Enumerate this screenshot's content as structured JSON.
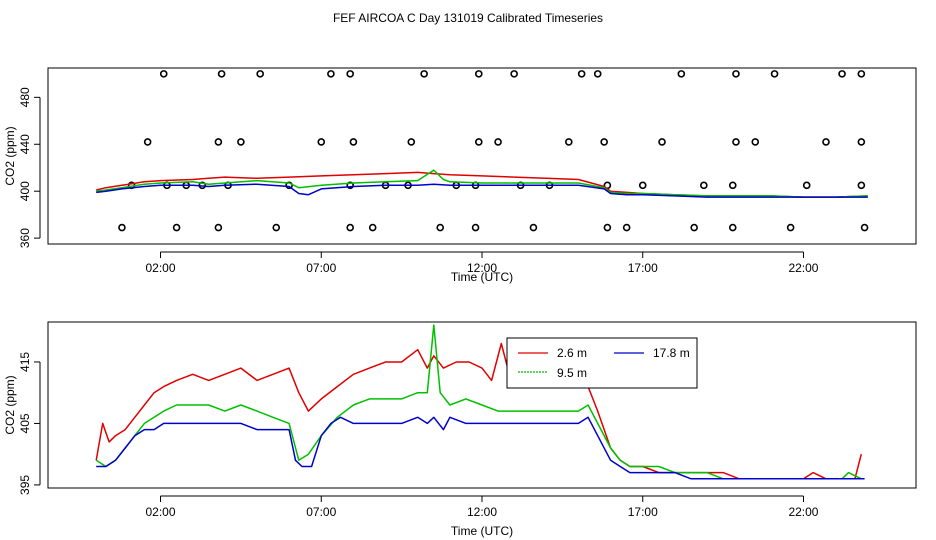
{
  "title": "FEF AIRCOA C  Day 131019  Calibrated Timeseries",
  "colors": {
    "red": "#e00000",
    "green": "#00c000",
    "blue": "#0000cc",
    "axis": "#000000"
  },
  "chart_data": [
    {
      "type": "line",
      "xlabel": "Time (UTC)",
      "ylabel": "CO2 (ppm)",
      "xlim": [
        -1.5,
        25.5
      ],
      "ylim": [
        355,
        505
      ],
      "xticks": [
        2,
        7,
        12,
        17,
        22
      ],
      "xtick_labels": [
        "02:00",
        "07:00",
        "12:00",
        "17:00",
        "22:00"
      ],
      "yticks": [
        360,
        400,
        440,
        480
      ],
      "ytick_labels": [
        "360",
        "400",
        "440",
        "480"
      ],
      "series": [
        {
          "name": "2.6 m",
          "color": "red",
          "x": [
            0,
            0.3,
            0.8,
            1.5,
            2,
            3,
            3.5,
            4,
            5,
            6,
            7,
            8,
            9,
            10,
            10.5,
            11,
            12,
            13,
            14,
            15,
            15.8,
            16,
            16.5,
            17,
            18,
            19,
            20,
            21,
            22,
            23,
            24
          ],
          "y": [
            401,
            403,
            405,
            408,
            409,
            410,
            411,
            412,
            411,
            412,
            413,
            414,
            415,
            416,
            415,
            414,
            413,
            412,
            411,
            410,
            404,
            400,
            399,
            398,
            397,
            396,
            396,
            396,
            395,
            395,
            396
          ]
        },
        {
          "name": "9.5 m",
          "color": "green",
          "x": [
            0,
            0.3,
            0.8,
            1.5,
            2,
            3,
            3.5,
            4,
            5,
            6,
            6.3,
            7,
            8,
            9,
            10,
            10.5,
            10.8,
            11,
            12,
            13,
            14,
            15,
            15.8,
            16,
            16.5,
            17,
            18,
            19,
            20,
            21,
            22,
            23,
            24
          ],
          "y": [
            400,
            401,
            403,
            406,
            407,
            408,
            406,
            407,
            409,
            407,
            403,
            405,
            407,
            408,
            409,
            418,
            410,
            408,
            407,
            407,
            407,
            407,
            403,
            399,
            398,
            398,
            397,
            396,
            396,
            396,
            395,
            395,
            396
          ]
        },
        {
          "name": "17.8 m",
          "color": "blue",
          "x": [
            0,
            0.3,
            0.8,
            1.5,
            2,
            3,
            3.5,
            4,
            5,
            6,
            6.3,
            6.6,
            7,
            8,
            9,
            10,
            10.5,
            11,
            12,
            13,
            14,
            15,
            15.8,
            16,
            16.5,
            17,
            18,
            19,
            20,
            21,
            22,
            23,
            24
          ],
          "y": [
            399,
            400,
            402,
            404,
            405,
            405,
            404,
            405,
            406,
            404,
            398,
            397,
            402,
            404,
            405,
            405,
            406,
            405,
            405,
            405,
            405,
            405,
            402,
            398,
            397,
            397,
            396,
            395,
            395,
            395,
            395,
            395,
            395
          ]
        }
      ],
      "flag_markers": [
        {
          "level": 500,
          "x": [
            2.1,
            3.9,
            5.1,
            7.3,
            7.9,
            10.2,
            11.9,
            13,
            15.1,
            15.6,
            18.2,
            19.9,
            21.1,
            23.2,
            23.8
          ]
        },
        {
          "level": 442,
          "x": [
            1.6,
            3.8,
            4.5,
            7,
            8,
            9.8,
            11.9,
            12.5,
            14.7,
            15.8,
            17.6,
            19.9,
            20.5,
            22.7,
            23.8
          ]
        },
        {
          "level": 405,
          "x": [
            1.1,
            2.2,
            2.8,
            3.3,
            4.1,
            6,
            7.9,
            9,
            9.7,
            11.2,
            11.8,
            13.2,
            14.1,
            15.9,
            17,
            18.9,
            19.8,
            22.1,
            23.8
          ]
        },
        {
          "level": 369,
          "x": [
            0.8,
            2.5,
            3.8,
            5.6,
            7.9,
            8.6,
            10.7,
            11.8,
            13.6,
            15.9,
            16.5,
            18.6,
            19.8,
            21.6,
            23.9
          ]
        }
      ]
    },
    {
      "type": "line",
      "xlabel": "Time (UTC)",
      "ylabel": "CO2 (ppm)",
      "xlim": [
        -1.5,
        25.5
      ],
      "ylim": [
        394.5,
        421.5
      ],
      "xticks": [
        2,
        7,
        12,
        17,
        22
      ],
      "xtick_labels": [
        "02:00",
        "07:00",
        "12:00",
        "17:00",
        "22:00"
      ],
      "yticks": [
        395,
        405,
        415
      ],
      "ytick_labels": [
        "395",
        "405",
        "415"
      ],
      "legend": {
        "position": "top-center",
        "entries": [
          "2.6 m",
          "9.5 m",
          "17.8 m"
        ]
      },
      "series": [
        {
          "name": "2.6 m",
          "color": "red",
          "x": [
            0,
            0.2,
            0.4,
            0.6,
            0.9,
            1.2,
            1.5,
            1.8,
            2.1,
            2.5,
            3,
            3.5,
            4,
            4.5,
            5,
            5.5,
            6,
            6.3,
            6.6,
            7,
            7.5,
            8,
            8.5,
            9,
            9.5,
            10,
            10.3,
            10.5,
            10.8,
            11.2,
            11.6,
            12,
            12.3,
            12.6,
            12.8,
            13.2,
            13.6,
            14,
            14.5,
            15,
            15.3,
            15.6,
            16,
            16.3,
            16.6,
            17,
            17.5,
            18,
            18.5,
            19,
            19.5,
            20,
            20.5,
            21,
            21.5,
            22,
            22.3,
            22.7,
            23,
            23.4,
            23.6,
            23.8
          ],
          "y": [
            399,
            405,
            402,
            403,
            404,
            406,
            408,
            410,
            411,
            412,
            413,
            412,
            413,
            414,
            412,
            413,
            414,
            410,
            407,
            409,
            411,
            413,
            414,
            415,
            415,
            417,
            414,
            416,
            414,
            415,
            415,
            414,
            412,
            418,
            414,
            413,
            413,
            413,
            413,
            413,
            411,
            407,
            401,
            399,
            398,
            398,
            397,
            397,
            397,
            397,
            397,
            396,
            396,
            396,
            396,
            396,
            397,
            396,
            396,
            396,
            396,
            400
          ]
        },
        {
          "name": "9.5 m",
          "color": "green",
          "x": [
            0,
            0.3,
            0.6,
            0.9,
            1.2,
            1.5,
            1.8,
            2.1,
            2.5,
            3,
            3.5,
            4,
            4.5,
            5,
            5.5,
            6,
            6.3,
            6.6,
            7,
            7.5,
            8,
            8.5,
            9,
            9.5,
            10,
            10.3,
            10.5,
            10.7,
            11,
            11.5,
            12,
            12.5,
            13,
            13.5,
            14,
            14.5,
            15,
            15.3,
            15.6,
            16,
            16.3,
            16.6,
            17,
            17.5,
            18,
            18.5,
            19,
            19.5,
            20,
            20.5,
            21,
            21.5,
            22,
            22.5,
            23,
            23.2,
            23.4,
            23.8
          ],
          "y": [
            399,
            398,
            399,
            401,
            403,
            405,
            406,
            407,
            408,
            408,
            408,
            407,
            408,
            407,
            406,
            405,
            399,
            400,
            403,
            406,
            408,
            409,
            409,
            409,
            410,
            410,
            421,
            410,
            408,
            409,
            408,
            407,
            407,
            407,
            407,
            407,
            407,
            408,
            405,
            401,
            399,
            398,
            398,
            398,
            397,
            397,
            397,
            396,
            396,
            396,
            396,
            396,
            396,
            396,
            396,
            396,
            397,
            396
          ]
        },
        {
          "name": "17.8 m",
          "color": "blue",
          "x": [
            0,
            0.3,
            0.6,
            0.9,
            1.2,
            1.5,
            1.8,
            2.1,
            2.5,
            3,
            3.5,
            4,
            4.5,
            5,
            5.5,
            6,
            6.2,
            6.4,
            6.7,
            7,
            7.3,
            7.6,
            8,
            8.5,
            9,
            9.5,
            10,
            10.3,
            10.5,
            10.8,
            11,
            11.5,
            12,
            12.5,
            13,
            13.5,
            14,
            14.5,
            15,
            15.3,
            15.6,
            16,
            16.3,
            16.6,
            17,
            17.5,
            18,
            18.5,
            19,
            19.5,
            20,
            20.5,
            21,
            21.5,
            22,
            22.5,
            23,
            23.5,
            23.9
          ],
          "y": [
            398,
            398,
            399,
            401,
            403,
            404,
            404,
            405,
            405,
            405,
            405,
            405,
            405,
            404,
            404,
            404,
            399,
            398,
            398,
            403,
            405,
            406,
            405,
            405,
            405,
            405,
            406,
            405,
            406,
            404,
            406,
            405,
            405,
            405,
            405,
            405,
            405,
            405,
            405,
            406,
            403,
            399,
            398,
            397,
            397,
            397,
            397,
            396,
            396,
            396,
            396,
            396,
            396,
            396,
            396,
            396,
            396,
            396,
            396
          ]
        }
      ]
    }
  ]
}
